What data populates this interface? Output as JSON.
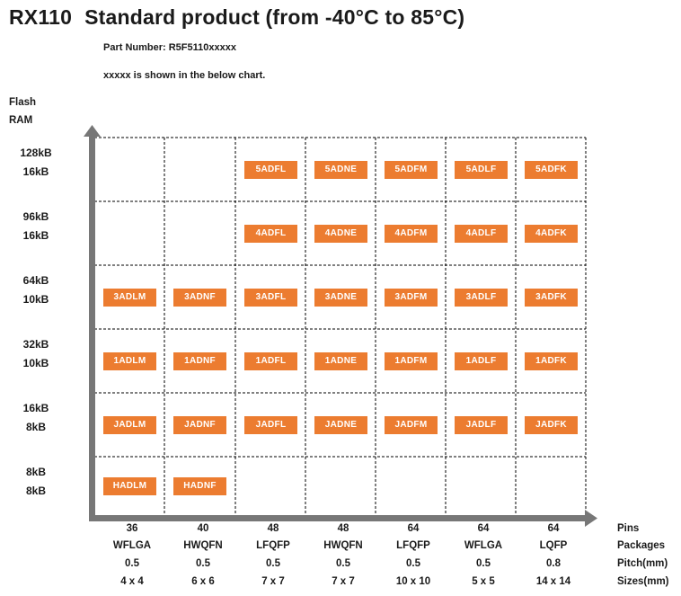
{
  "title": {
    "series": "RX110",
    "text": "Standard product (from -40°C to 85°C)"
  },
  "part_number": "Part Number: R5F5110xxxxx",
  "note": "xxxxx is shown in the below chart.",
  "axis": {
    "flash": "Flash",
    "ram": "RAM"
  },
  "rows": [
    {
      "flash": "128kB",
      "ram": "16kB",
      "codes": [
        "",
        "",
        "5ADFL",
        "5ADNE",
        "5ADFM",
        "5ADLF",
        "5ADFK"
      ]
    },
    {
      "flash": "96kB",
      "ram": "16kB",
      "codes": [
        "",
        "",
        "4ADFL",
        "4ADNE",
        "4ADFM",
        "4ADLF",
        "4ADFK"
      ]
    },
    {
      "flash": "64kB",
      "ram": "10kB",
      "codes": [
        "3ADLM",
        "3ADNF",
        "3ADFL",
        "3ADNE",
        "3ADFM",
        "3ADLF",
        "3ADFK"
      ]
    },
    {
      "flash": "32kB",
      "ram": "10kB",
      "codes": [
        "1ADLM",
        "1ADNF",
        "1ADFL",
        "1ADNE",
        "1ADFM",
        "1ADLF",
        "1ADFK"
      ]
    },
    {
      "flash": "16kB",
      "ram": "8kB",
      "codes": [
        "JADLM",
        "JADNF",
        "JADFL",
        "JADNE",
        "JADFM",
        "JADLF",
        "JADFK"
      ]
    },
    {
      "flash": "8kB",
      "ram": "8kB",
      "codes": [
        "HADLM",
        "HADNF",
        "",
        "",
        "",
        "",
        ""
      ]
    }
  ],
  "columns": [
    {
      "pins": "36",
      "package": "WFLGA",
      "pitch": "0.5",
      "size": "4 x 4"
    },
    {
      "pins": "40",
      "package": "HWQFN",
      "pitch": "0.5",
      "size": "6 x 6"
    },
    {
      "pins": "48",
      "package": "LFQFP",
      "pitch": "0.5",
      "size": "7 x 7"
    },
    {
      "pins": "48",
      "package": "HWQFN",
      "pitch": "0.5",
      "size": "7 x 7"
    },
    {
      "pins": "64",
      "package": "LFQFP",
      "pitch": "0.5",
      "size": "10 x 10"
    },
    {
      "pins": "64",
      "package": "WFLGA",
      "pitch": "0.5",
      "size": "5 x 5"
    },
    {
      "pins": "64",
      "package": "LQFP",
      "pitch": "0.8",
      "size": "14 x 14"
    }
  ],
  "row_headers": {
    "pins": "Pins",
    "packages": "Packages",
    "pitch": "Pitch(mm)",
    "sizes": "Sizes(mm)"
  },
  "colors": {
    "chip": "#ec7c30",
    "axis": "#777777",
    "grid": "#000000"
  }
}
